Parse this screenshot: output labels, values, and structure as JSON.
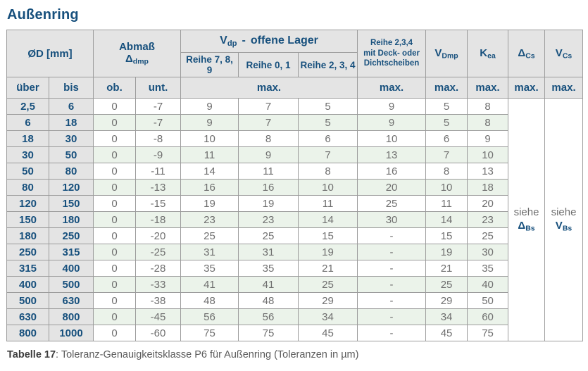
{
  "title": "Außenring",
  "colors": {
    "accent_navy": "#17507d",
    "header_gray": "#e4e4e4",
    "row_green": "#ebf3ea",
    "value_gray": "#6f6f6f",
    "border_gray": "#9c9c9c"
  },
  "table": {
    "headers": {
      "od_label": "ØD  [mm]",
      "abmass_line1": "Abmaß",
      "abmass_sym": "Δ",
      "abmass_sub": "dmp",
      "vdp_sym": "V",
      "vdp_sub": "dp",
      "vdp_rest": "offene Lager",
      "vdp_dash": "-",
      "reihe_789": "Reihe 7, 8, 9",
      "reihe_01": "Reihe 0, 1",
      "reihe_234": "Reihe 2, 3, 4",
      "deck_line1": "Reihe 2,3,4",
      "deck_line2": "mit Deck- oder",
      "deck_line3": "Dichtscheiben",
      "vdmp_sym": "V",
      "vdmp_sub": "Dmp",
      "kea_sym": "K",
      "kea_sub": "ea",
      "dcs_sym": "Δ",
      "dcs_sub": "Cs",
      "vcs_sym": "V",
      "vcs_sub": "Cs",
      "ueber": "über",
      "bis": "bis",
      "ob": "ob.",
      "unt": "unt.",
      "max": "max."
    },
    "merged": {
      "dcs": {
        "siehe": "siehe",
        "sym": "Δ",
        "sub": "Bs"
      },
      "vcs": {
        "siehe": "siehe",
        "sym": "V",
        "sub": "Bs"
      }
    },
    "rows": [
      [
        "2,5",
        "6",
        "0",
        "-7",
        "9",
        "7",
        "5",
        "9",
        "5",
        "8"
      ],
      [
        "6",
        "18",
        "0",
        "-7",
        "9",
        "7",
        "5",
        "9",
        "5",
        "8"
      ],
      [
        "18",
        "30",
        "0",
        "-8",
        "10",
        "8",
        "6",
        "10",
        "6",
        "9"
      ],
      [
        "30",
        "50",
        "0",
        "-9",
        "11",
        "9",
        "7",
        "13",
        "7",
        "10"
      ],
      [
        "50",
        "80",
        "0",
        "-11",
        "14",
        "11",
        "8",
        "16",
        "8",
        "13"
      ],
      [
        "80",
        "120",
        "0",
        "-13",
        "16",
        "16",
        "10",
        "20",
        "10",
        "18"
      ],
      [
        "120",
        "150",
        "0",
        "-15",
        "19",
        "19",
        "11",
        "25",
        "11",
        "20"
      ],
      [
        "150",
        "180",
        "0",
        "-18",
        "23",
        "23",
        "14",
        "30",
        "14",
        "23"
      ],
      [
        "180",
        "250",
        "0",
        "-20",
        "25",
        "25",
        "15",
        "-",
        "15",
        "25"
      ],
      [
        "250",
        "315",
        "0",
        "-25",
        "31",
        "31",
        "19",
        "-",
        "19",
        "30"
      ],
      [
        "315",
        "400",
        "0",
        "-28",
        "35",
        "35",
        "21",
        "-",
        "21",
        "35"
      ],
      [
        "400",
        "500",
        "0",
        "-33",
        "41",
        "41",
        "25",
        "-",
        "25",
        "40"
      ],
      [
        "500",
        "630",
        "0",
        "-38",
        "48",
        "48",
        "29",
        "-",
        "29",
        "50"
      ],
      [
        "630",
        "800",
        "0",
        "-45",
        "56",
        "56",
        "34",
        "-",
        "34",
        "60"
      ],
      [
        "800",
        "1000",
        "0",
        "-60",
        "75",
        "75",
        "45",
        "-",
        "45",
        "75"
      ]
    ]
  },
  "caption": {
    "label": "Tabelle 17",
    "text": ": Toleranz-Genauigkeitsklasse P6 für Außenring (Toleranzen in µm)"
  }
}
